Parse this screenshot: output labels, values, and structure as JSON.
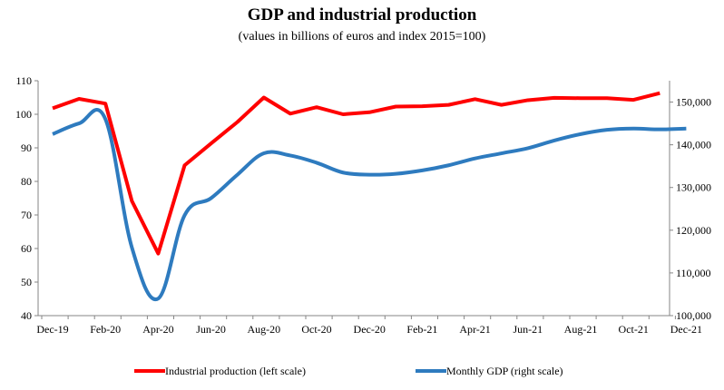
{
  "chart_data": {
    "type": "line",
    "title": "GDP and industrial production",
    "subtitle": "(values in billions of euros and index 2015=100)",
    "x_tick_labels": [
      "Dec-19",
      "Feb-20",
      "Apr-20",
      "Jun-20",
      "Aug-20",
      "Oct-20",
      "Dec-20",
      "Feb-21",
      "Apr-21",
      "Jun-21",
      "Aug-21",
      "Oct-21",
      "Dec-21"
    ],
    "y_left": {
      "ylim": [
        40,
        110
      ],
      "ticks": [
        40,
        50,
        60,
        70,
        80,
        90,
        100,
        110
      ]
    },
    "y_right": {
      "ylim": [
        100000,
        155000
      ],
      "ticks": [
        100000,
        110000,
        120000,
        130000,
        140000,
        150000
      ],
      "tick_labels": [
        "100,000",
        "110,000",
        "120,000",
        "130,000",
        "140,000",
        "150,000"
      ]
    },
    "grid": false,
    "legend_position": "bottom",
    "series": [
      {
        "name": "Industrial production (left scale)",
        "axis": "left",
        "color": "#ff0000",
        "x": [
          "Dec-19",
          "Jan-20",
          "Feb-20",
          "Mar-20",
          "Apr-20",
          "May-20",
          "Jun-20",
          "Jul-20",
          "Aug-20",
          "Sep-20",
          "Oct-20",
          "Nov-20",
          "Dec-20",
          "Jan-21",
          "Feb-21",
          "Mar-21",
          "Apr-21",
          "May-21",
          "Jun-21",
          "Jul-21",
          "Aug-21",
          "Sep-21",
          "Oct-21",
          "Nov-21"
        ],
        "values": [
          101.8,
          104.6,
          103.2,
          74.2,
          58.5,
          84.8,
          91.3,
          97.7,
          105.0,
          100.2,
          102.1,
          100.0,
          100.6,
          102.3,
          102.4,
          102.8,
          104.5,
          102.8,
          104.2,
          104.9,
          104.8,
          104.8,
          104.3,
          106.3
        ]
      },
      {
        "name": "Monthly GDP (right scale)",
        "axis": "right",
        "color": "#2e7bbf",
        "x": [
          "Dec-19",
          "Jan-20",
          "Feb-20",
          "Mar-20",
          "Apr-20",
          "May-20",
          "Jun-20",
          "Jul-20",
          "Aug-20",
          "Sep-20",
          "Oct-20",
          "Nov-20",
          "Dec-20",
          "Jan-21",
          "Feb-21",
          "Mar-21",
          "Apr-21",
          "May-21",
          "Jun-21",
          "Jul-21",
          "Aug-21",
          "Sep-21",
          "Oct-21",
          "Nov-21",
          "Dec-21"
        ],
        "values": [
          142500,
          145000,
          146000,
          116000,
          104000,
          123500,
          127500,
          133000,
          138000,
          137500,
          135800,
          133500,
          133000,
          133200,
          134000,
          135200,
          136800,
          138000,
          139200,
          141000,
          142500,
          143500,
          143800,
          143600,
          143800
        ]
      }
    ]
  }
}
